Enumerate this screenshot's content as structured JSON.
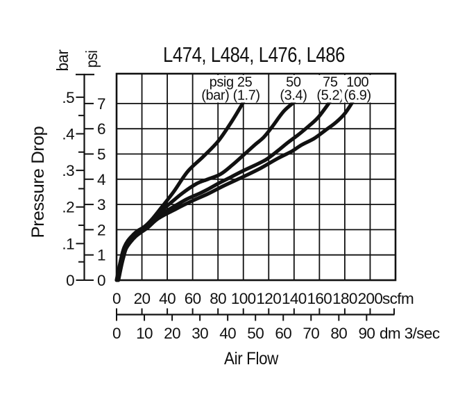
{
  "chart_data": {
    "type": "line",
    "title": "L474, L484, L476, L486",
    "xlabel": "Air Flow",
    "ylabel": "Pressure Drop",
    "grid": "on",
    "legend_position": "labels-inside-plot-top",
    "background": "#ffffff",
    "ink_color": "#111111",
    "x_axis": {
      "primary_unit": "scfm",
      "primary_tick_labels": [
        "0",
        "20",
        "40",
        "60",
        "80",
        "100",
        "120",
        "140",
        "160",
        "180",
        "200"
      ],
      "primary_tick_values": [
        0,
        20,
        40,
        60,
        80,
        100,
        120,
        140,
        160,
        180,
        200
      ],
      "secondary_unit": "dm 3/sec",
      "secondary_tick_labels": [
        "0",
        "10",
        "20",
        "30",
        "40",
        "50",
        "60",
        "70",
        "80",
        "90"
      ],
      "secondary_tick_values": [
        0,
        10,
        20,
        30,
        40,
        50,
        60,
        70,
        80,
        90
      ],
      "range_scfm": [
        0,
        220
      ],
      "gridline_step_scfm": 20
    },
    "y_axis": {
      "left_unit": "bar",
      "left_tick_labels": [
        "0",
        ".1",
        ".2",
        ".3",
        ".4",
        ".5"
      ],
      "left_tick_values": [
        0,
        0.1,
        0.2,
        0.3,
        0.4,
        0.5
      ],
      "left_minor_tick_values": [
        0.05,
        0.15,
        0.25,
        0.35,
        0.45
      ],
      "right_unit": "psi",
      "right_tick_labels": [
        "0",
        "1",
        "2",
        "3",
        "4",
        "5",
        "6",
        "7"
      ],
      "right_tick_values": [
        0,
        1,
        2,
        3,
        4,
        5,
        6,
        7
      ],
      "range_psi": [
        0,
        8.2
      ],
      "gridline_step_psi": 1
    },
    "series": [
      {
        "name": "25 psig (1.7 bar) inlet",
        "label_line1": "psig 25",
        "label_line2": "(bar) (1.7)",
        "label_center_scfm": 90,
        "points_scfm_psi": [
          [
            0,
            0
          ],
          [
            2,
            0.5
          ],
          [
            4,
            0.95
          ],
          [
            6,
            1.3
          ],
          [
            9,
            1.57
          ],
          [
            13,
            1.8
          ],
          [
            17,
            1.97
          ],
          [
            22,
            2.12
          ],
          [
            28,
            2.42
          ],
          [
            36,
            2.92
          ],
          [
            45,
            3.5
          ],
          [
            56,
            4.3
          ],
          [
            68,
            4.88
          ],
          [
            80,
            5.5
          ],
          [
            91,
            6.3
          ],
          [
            100,
            7.05
          ]
        ]
      },
      {
        "name": "50 psig (3.4 bar) inlet",
        "label_line1": "50",
        "label_line2": "(3.4)",
        "label_center_scfm": 139.5,
        "points_scfm_psi": [
          [
            0.5,
            0
          ],
          [
            2.5,
            0.5
          ],
          [
            4.5,
            0.95
          ],
          [
            6.5,
            1.3
          ],
          [
            9.5,
            1.56
          ],
          [
            13.5,
            1.79
          ],
          [
            18,
            1.96
          ],
          [
            23,
            2.14
          ],
          [
            32,
            2.62
          ],
          [
            40,
            2.95
          ],
          [
            52,
            3.45
          ],
          [
            63,
            3.82
          ],
          [
            72,
            4.0
          ],
          [
            82,
            4.2
          ],
          [
            91,
            4.55
          ],
          [
            100,
            4.95
          ],
          [
            109,
            5.36
          ],
          [
            116,
            5.66
          ],
          [
            123,
            6.1
          ],
          [
            132,
            6.7
          ],
          [
            140,
            7.05
          ]
        ]
      },
      {
        "name": "75 psig (5.2 bar) inlet",
        "label_line1": "75",
        "label_line2": "(5.2)",
        "label_center_scfm": 168.5,
        "points_scfm_psi": [
          [
            1,
            0
          ],
          [
            3,
            0.5
          ],
          [
            5,
            0.93
          ],
          [
            7,
            1.27
          ],
          [
            10,
            1.53
          ],
          [
            14,
            1.76
          ],
          [
            19,
            1.94
          ],
          [
            24,
            2.12
          ],
          [
            33,
            2.55
          ],
          [
            43,
            2.85
          ],
          [
            55,
            3.2
          ],
          [
            66,
            3.45
          ],
          [
            72,
            3.6
          ],
          [
            81,
            3.85
          ],
          [
            90,
            4.08
          ],
          [
            100,
            4.34
          ],
          [
            109,
            4.55
          ],
          [
            118,
            4.78
          ],
          [
            127,
            5.12
          ],
          [
            135,
            5.45
          ],
          [
            143,
            5.75
          ],
          [
            151,
            6.08
          ],
          [
            159,
            6.45
          ],
          [
            168,
            7.05
          ]
        ]
      },
      {
        "name": "100 psig (6.9 bar) inlet",
        "label_line1": "100",
        "label_line2": "(6.9)",
        "label_center_scfm": 190,
        "points_scfm_psi": [
          [
            1.5,
            0
          ],
          [
            3.5,
            0.5
          ],
          [
            5.5,
            0.92
          ],
          [
            7.5,
            1.25
          ],
          [
            11,
            1.51
          ],
          [
            15,
            1.73
          ],
          [
            20,
            1.92
          ],
          [
            25,
            2.1
          ],
          [
            33,
            2.45
          ],
          [
            46,
            2.8
          ],
          [
            60,
            3.15
          ],
          [
            72,
            3.42
          ],
          [
            85,
            3.75
          ],
          [
            100,
            4.1
          ],
          [
            113,
            4.42
          ],
          [
            127,
            4.82
          ],
          [
            138,
            5.1
          ],
          [
            146,
            5.36
          ],
          [
            156,
            5.62
          ],
          [
            165,
            5.95
          ],
          [
            173,
            6.25
          ],
          [
            180,
            6.6
          ],
          [
            186,
            7.05
          ]
        ]
      }
    ]
  }
}
